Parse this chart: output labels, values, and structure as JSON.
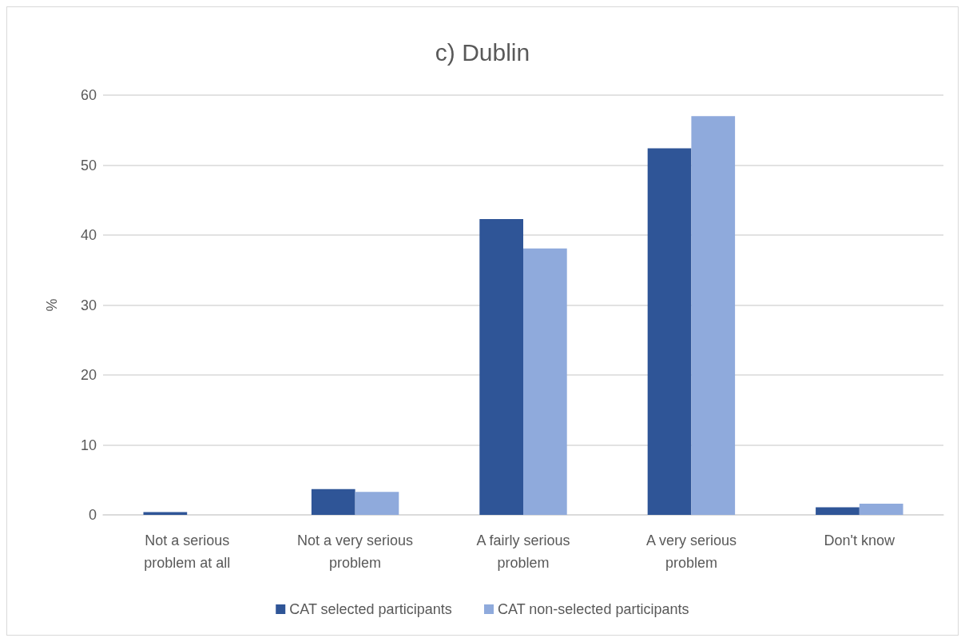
{
  "chart_data": {
    "type": "bar",
    "title": "c) Dublin",
    "ylabel": "%",
    "categories": [
      "Not a serious problem at all",
      "Not a very serious problem",
      "A fairly serious problem",
      "A very serious problem",
      "Don't know"
    ],
    "series": [
      {
        "name": "CAT selected participants",
        "color": "#2f5597",
        "values": [
          0.4,
          3.7,
          42.3,
          52.4,
          1.1
        ]
      },
      {
        "name": "CAT non-selected participants",
        "color": "#8faadc",
        "values": [
          0,
          3.3,
          38.1,
          57.0,
          1.6
        ]
      }
    ],
    "ylim": [
      0,
      60
    ],
    "yticks": [
      0,
      10,
      20,
      30,
      40,
      50,
      60
    ],
    "grid": "y",
    "legend": "bottom"
  }
}
